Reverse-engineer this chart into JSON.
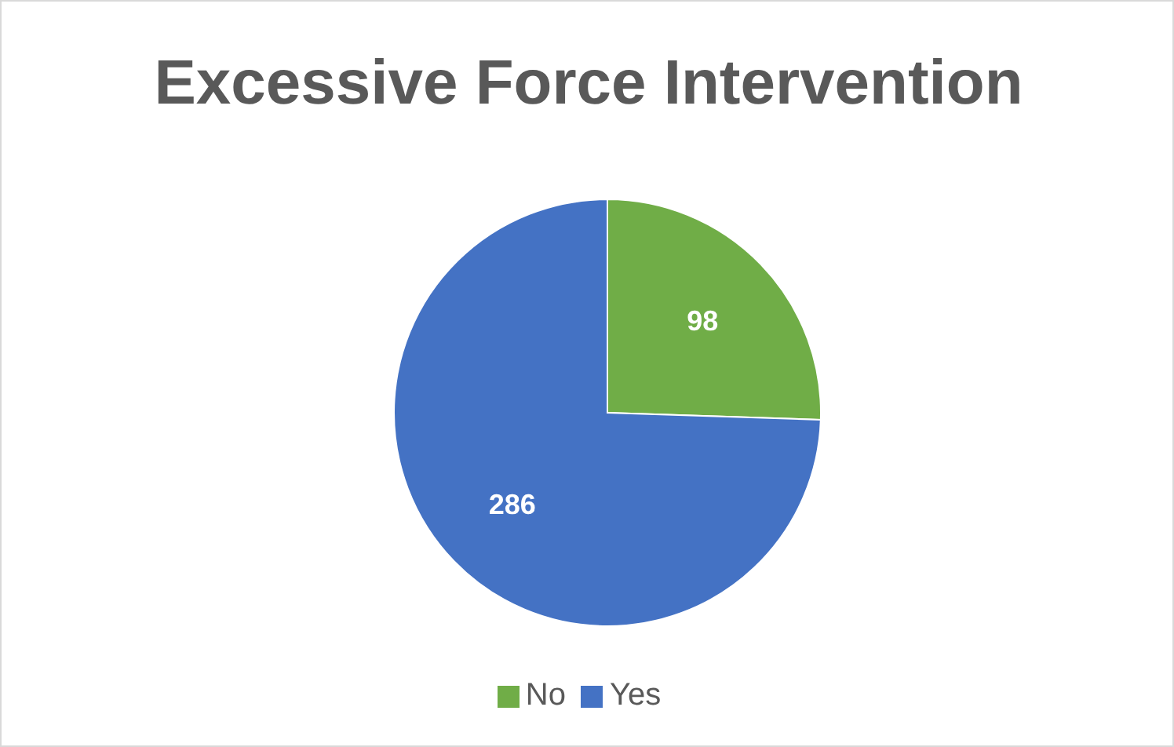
{
  "chart_data": {
    "type": "pie",
    "title": "Excessive Force Intervention",
    "categories": [
      "No",
      "Yes"
    ],
    "values": [
      98,
      286
    ],
    "colors": [
      "#70ad47",
      "#4472c4"
    ],
    "data_labels": true,
    "legend": "bottom"
  }
}
